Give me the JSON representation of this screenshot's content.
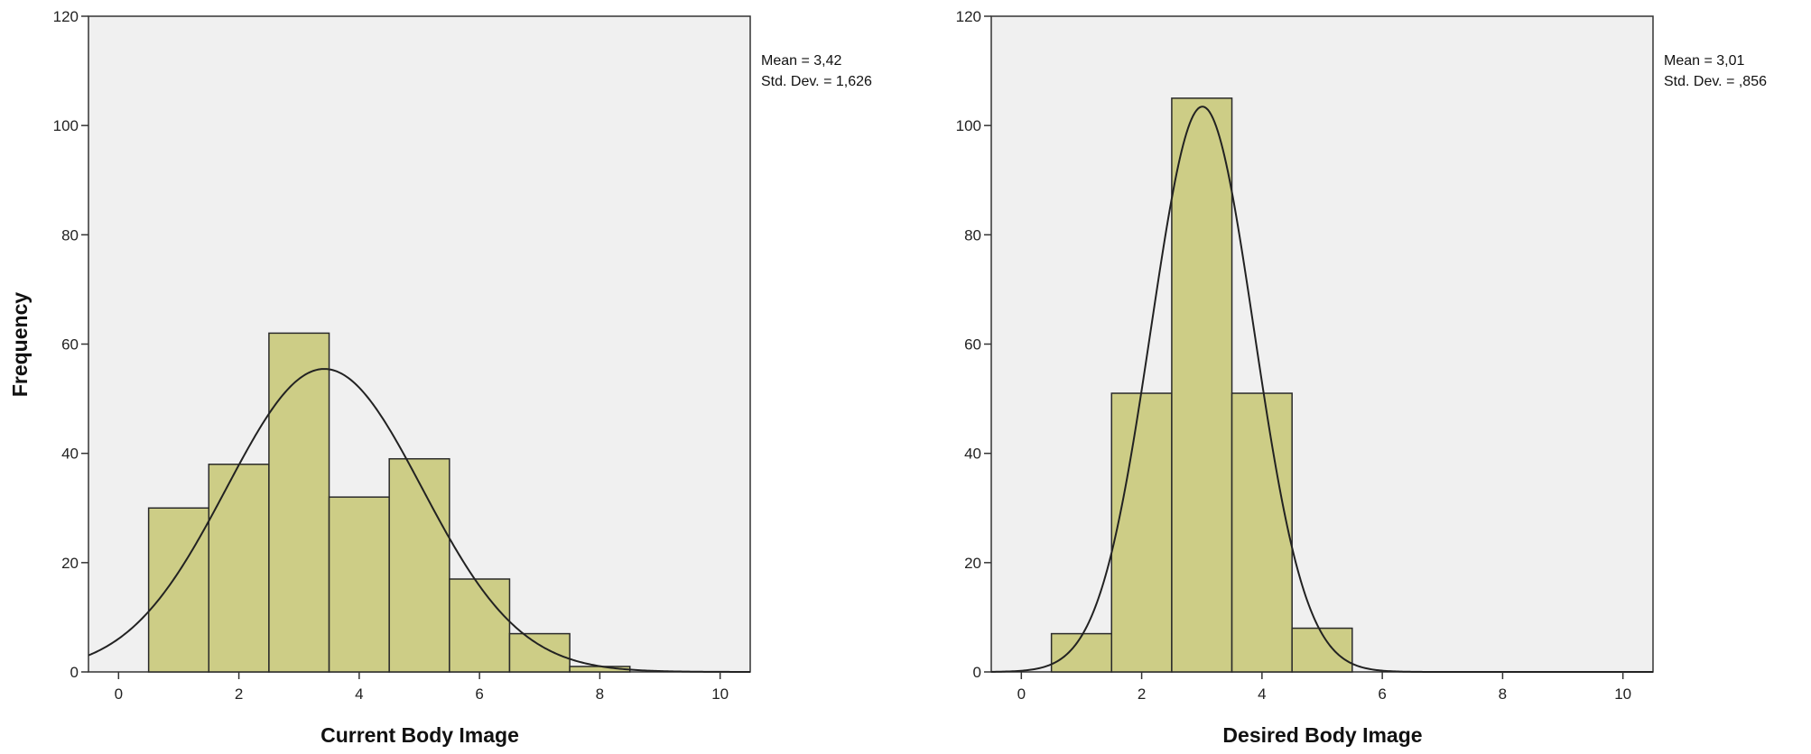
{
  "colors": {
    "plot_background": "#f0f0f0",
    "bar_fill": "#cdcd86",
    "bar_stroke": "#2a2a2a",
    "curve": "#222222"
  },
  "chart_data": [
    {
      "type": "bar",
      "subtype": "histogram-with-normal-curve",
      "xlabel": "Current Body Image",
      "ylabel": "Frequency",
      "xlim": [
        -0.5,
        10.5
      ],
      "ylim": [
        0,
        120
      ],
      "x_ticks": [
        "0",
        "2",
        "4",
        "6",
        "8",
        "10"
      ],
      "y_ticks": [
        "0",
        "20",
        "40",
        "60",
        "80",
        "100",
        "120"
      ],
      "bin_width": 1,
      "bin_centers": [
        1,
        2,
        3,
        4,
        5,
        6,
        7,
        8
      ],
      "values": [
        30,
        38,
        62,
        32,
        39,
        17,
        7,
        1
      ],
      "normal_curve": {
        "mean": 3.42,
        "std": 1.626,
        "n": 226
      },
      "stats": {
        "mean_text": "Mean = 3,42",
        "std_text": "Std. Dev. = 1,626"
      },
      "grid": false,
      "legend": "none"
    },
    {
      "type": "bar",
      "subtype": "histogram-with-normal-curve",
      "xlabel": "Desired Body Image",
      "ylabel": "",
      "xlim": [
        -0.5,
        10.5
      ],
      "ylim": [
        0,
        120
      ],
      "x_ticks": [
        "0",
        "2",
        "4",
        "6",
        "8",
        "10"
      ],
      "y_ticks": [
        "0",
        "20",
        "40",
        "60",
        "80",
        "100",
        "120"
      ],
      "bin_width": 1,
      "bin_centers": [
        1,
        2,
        3,
        4,
        5
      ],
      "values": [
        7,
        51,
        105,
        51,
        8
      ],
      "normal_curve": {
        "mean": 3.01,
        "std": 0.856,
        "n": 222
      },
      "stats": {
        "mean_text": "Mean = 3,01",
        "std_text": "Std. Dev. = ,856"
      },
      "grid": false,
      "legend": "none"
    }
  ]
}
